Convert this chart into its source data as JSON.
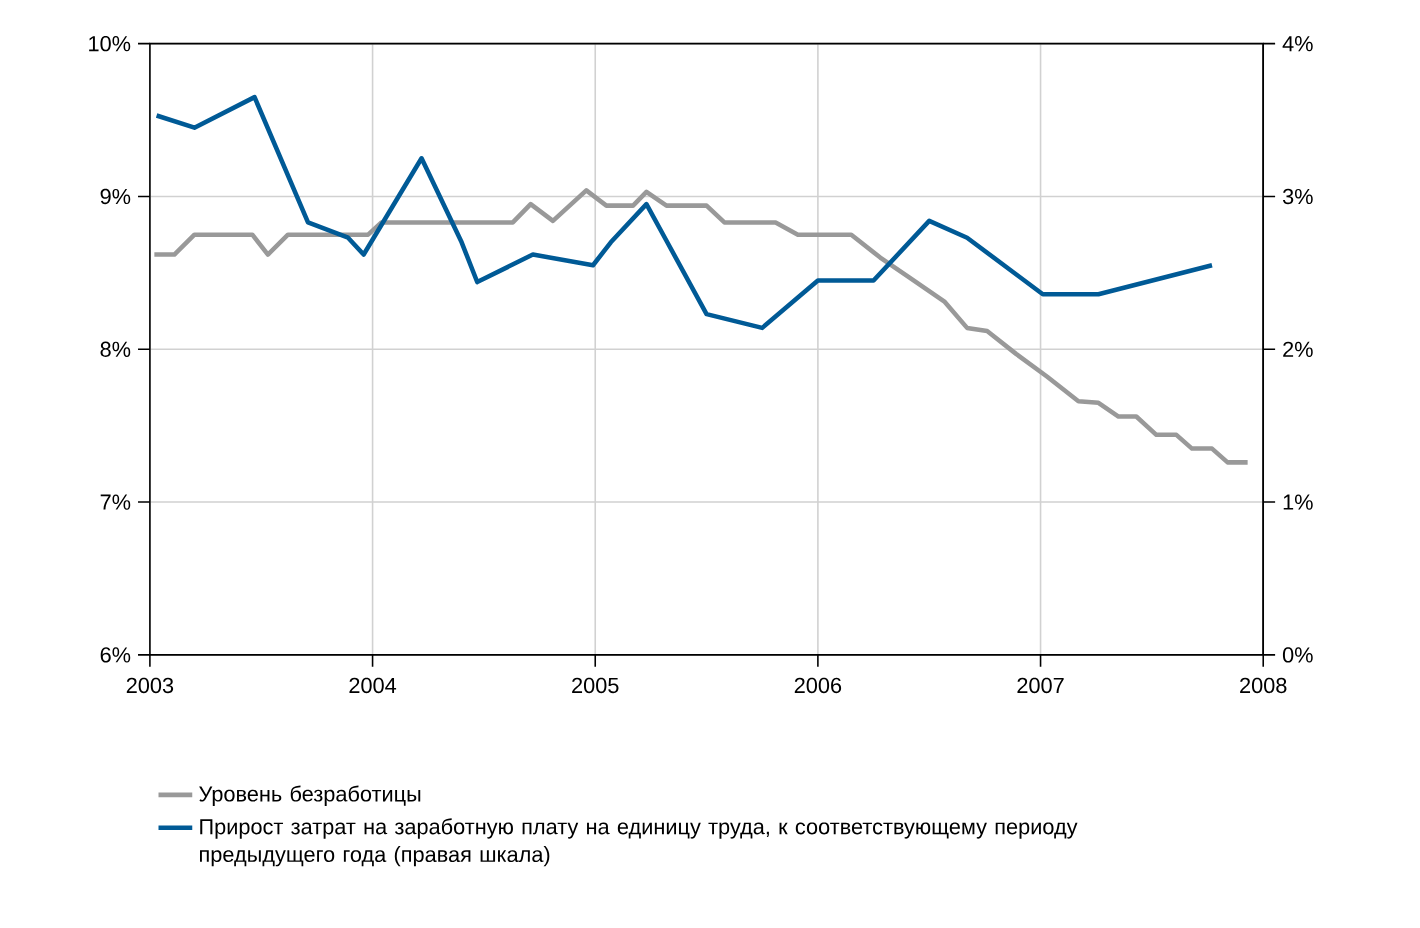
{
  "chart_data": {
    "type": "line",
    "grid": true,
    "legend": "bottom",
    "line_style": "solid",
    "marker": "none",
    "xlim": [
      2003,
      2008
    ],
    "xticks": [
      2003,
      2004,
      2005,
      2006,
      2007,
      2008
    ],
    "ylim": [
      6,
      10
    ],
    "yticks": [
      {
        "value": 6,
        "label": "6%"
      },
      {
        "value": 7,
        "label": "7%"
      },
      {
        "value": 8,
        "label": "8%"
      },
      {
        "value": 9,
        "label": "9%"
      },
      {
        "value": 10,
        "label": "10%"
      }
    ],
    "y2lim": [
      0,
      4
    ],
    "y2ticks": [
      {
        "value": 0,
        "label": "0%"
      },
      {
        "value": 1,
        "label": "1%"
      },
      {
        "value": 2,
        "label": "2%"
      },
      {
        "value": 3,
        "label": "3%"
      },
      {
        "value": 4,
        "label": "4%"
      }
    ],
    "series": [
      {
        "name": "Уровень безработицы",
        "color": "#999999",
        "x": [
          2003.02,
          2003.11,
          2003.2,
          2003.46,
          2003.53,
          2003.62,
          2003.98,
          2004.04,
          2004.63,
          2004.71,
          2004.81,
          2004.96,
          2005.05,
          2005.17,
          2005.23,
          2005.32,
          2005.5,
          2005.58,
          2005.81,
          2005.91,
          2006.15,
          2006.28,
          2006.41,
          2006.57,
          2006.67,
          2006.76,
          2006.89,
          2007.03,
          2007.17,
          2007.26,
          2007.35,
          2007.43,
          2007.52,
          2007.61,
          2007.68,
          2007.77,
          2007.84,
          2007.93
        ],
        "values": [
          8.62,
          8.62,
          8.75,
          8.75,
          8.62,
          8.75,
          8.75,
          8.83,
          8.83,
          8.95,
          8.84,
          9.04,
          8.94,
          8.94,
          9.03,
          8.94,
          8.94,
          8.83,
          8.83,
          8.75,
          8.75,
          8.6,
          8.47,
          8.31,
          8.14,
          8.12,
          7.97,
          7.82,
          7.66,
          7.65,
          7.56,
          7.56,
          7.44,
          7.44,
          7.35,
          7.35,
          7.26,
          7.26
        ]
      },
      {
        "name": "Прирост затрат на заработную плату на единицу труда, к соответствующему периоду предыдущего года (правая шкала)",
        "color": "#005a96",
        "axis": "y2",
        "x": [
          2003.03,
          2003.2,
          2003.47,
          2003.71,
          2003.89,
          2003.96,
          2004.22,
          2004.4,
          2004.47,
          2004.72,
          2004.99,
          2005.07,
          2005.23,
          2005.32,
          2005.5,
          2005.75,
          2006.0,
          2006.25,
          2006.5,
          2006.67,
          2007.01,
          2007.26,
          2007.77
        ],
        "values": [
          3.53,
          3.45,
          3.65,
          2.83,
          2.73,
          2.62,
          3.25,
          2.7,
          2.44,
          2.62,
          2.55,
          2.7,
          2.95,
          2.71,
          2.23,
          2.14,
          2.45,
          2.45,
          2.84,
          2.73,
          2.36,
          2.36,
          2.55
        ]
      }
    ]
  }
}
